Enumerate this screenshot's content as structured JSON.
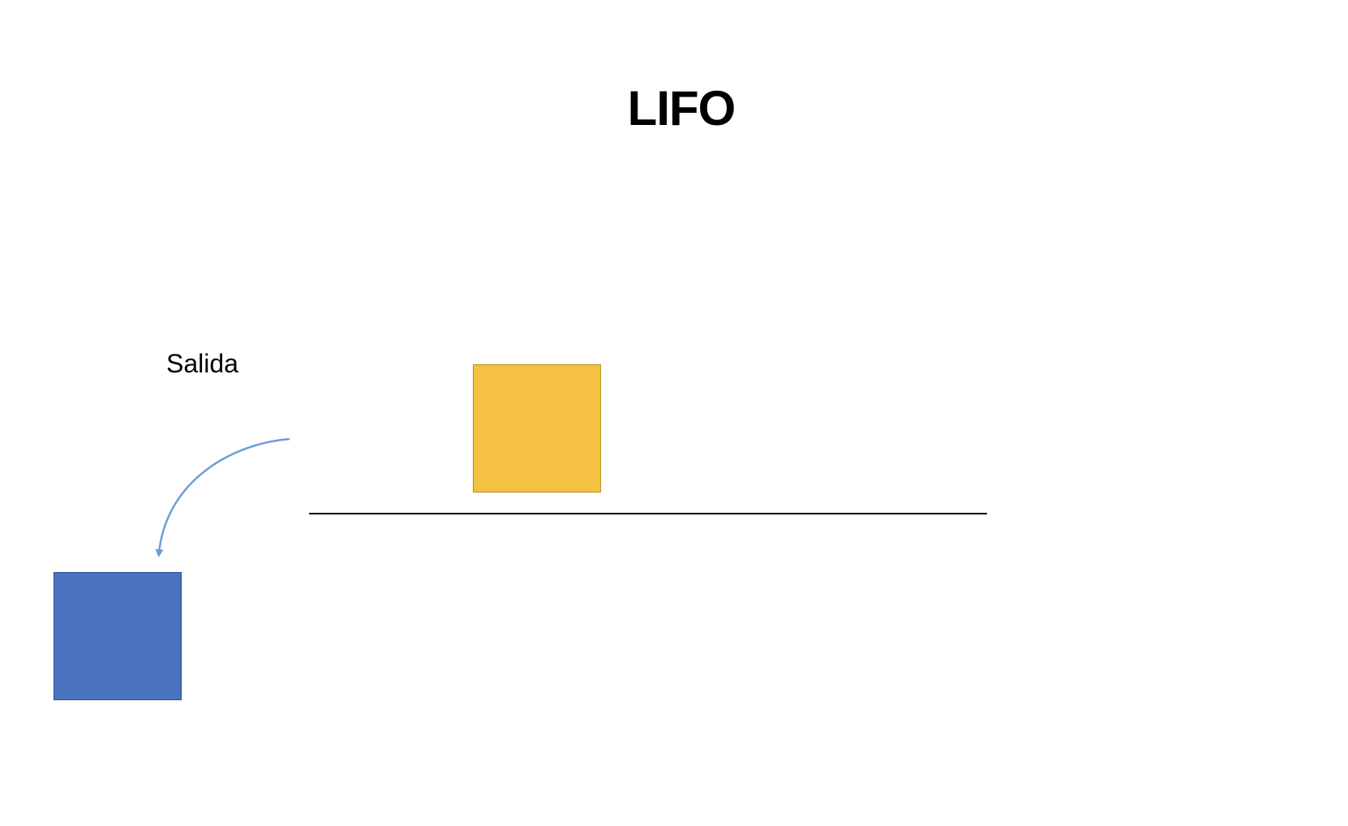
{
  "title": "LIFO",
  "exit_label": "Salida",
  "colors": {
    "top_box_fill": "#F5C142",
    "top_box_border": "#B8901A",
    "exited_box_fill": "#4A72BE",
    "exited_box_border": "#2F4F8F",
    "arrow": "#6D9ED5",
    "baseline": "#000000"
  }
}
